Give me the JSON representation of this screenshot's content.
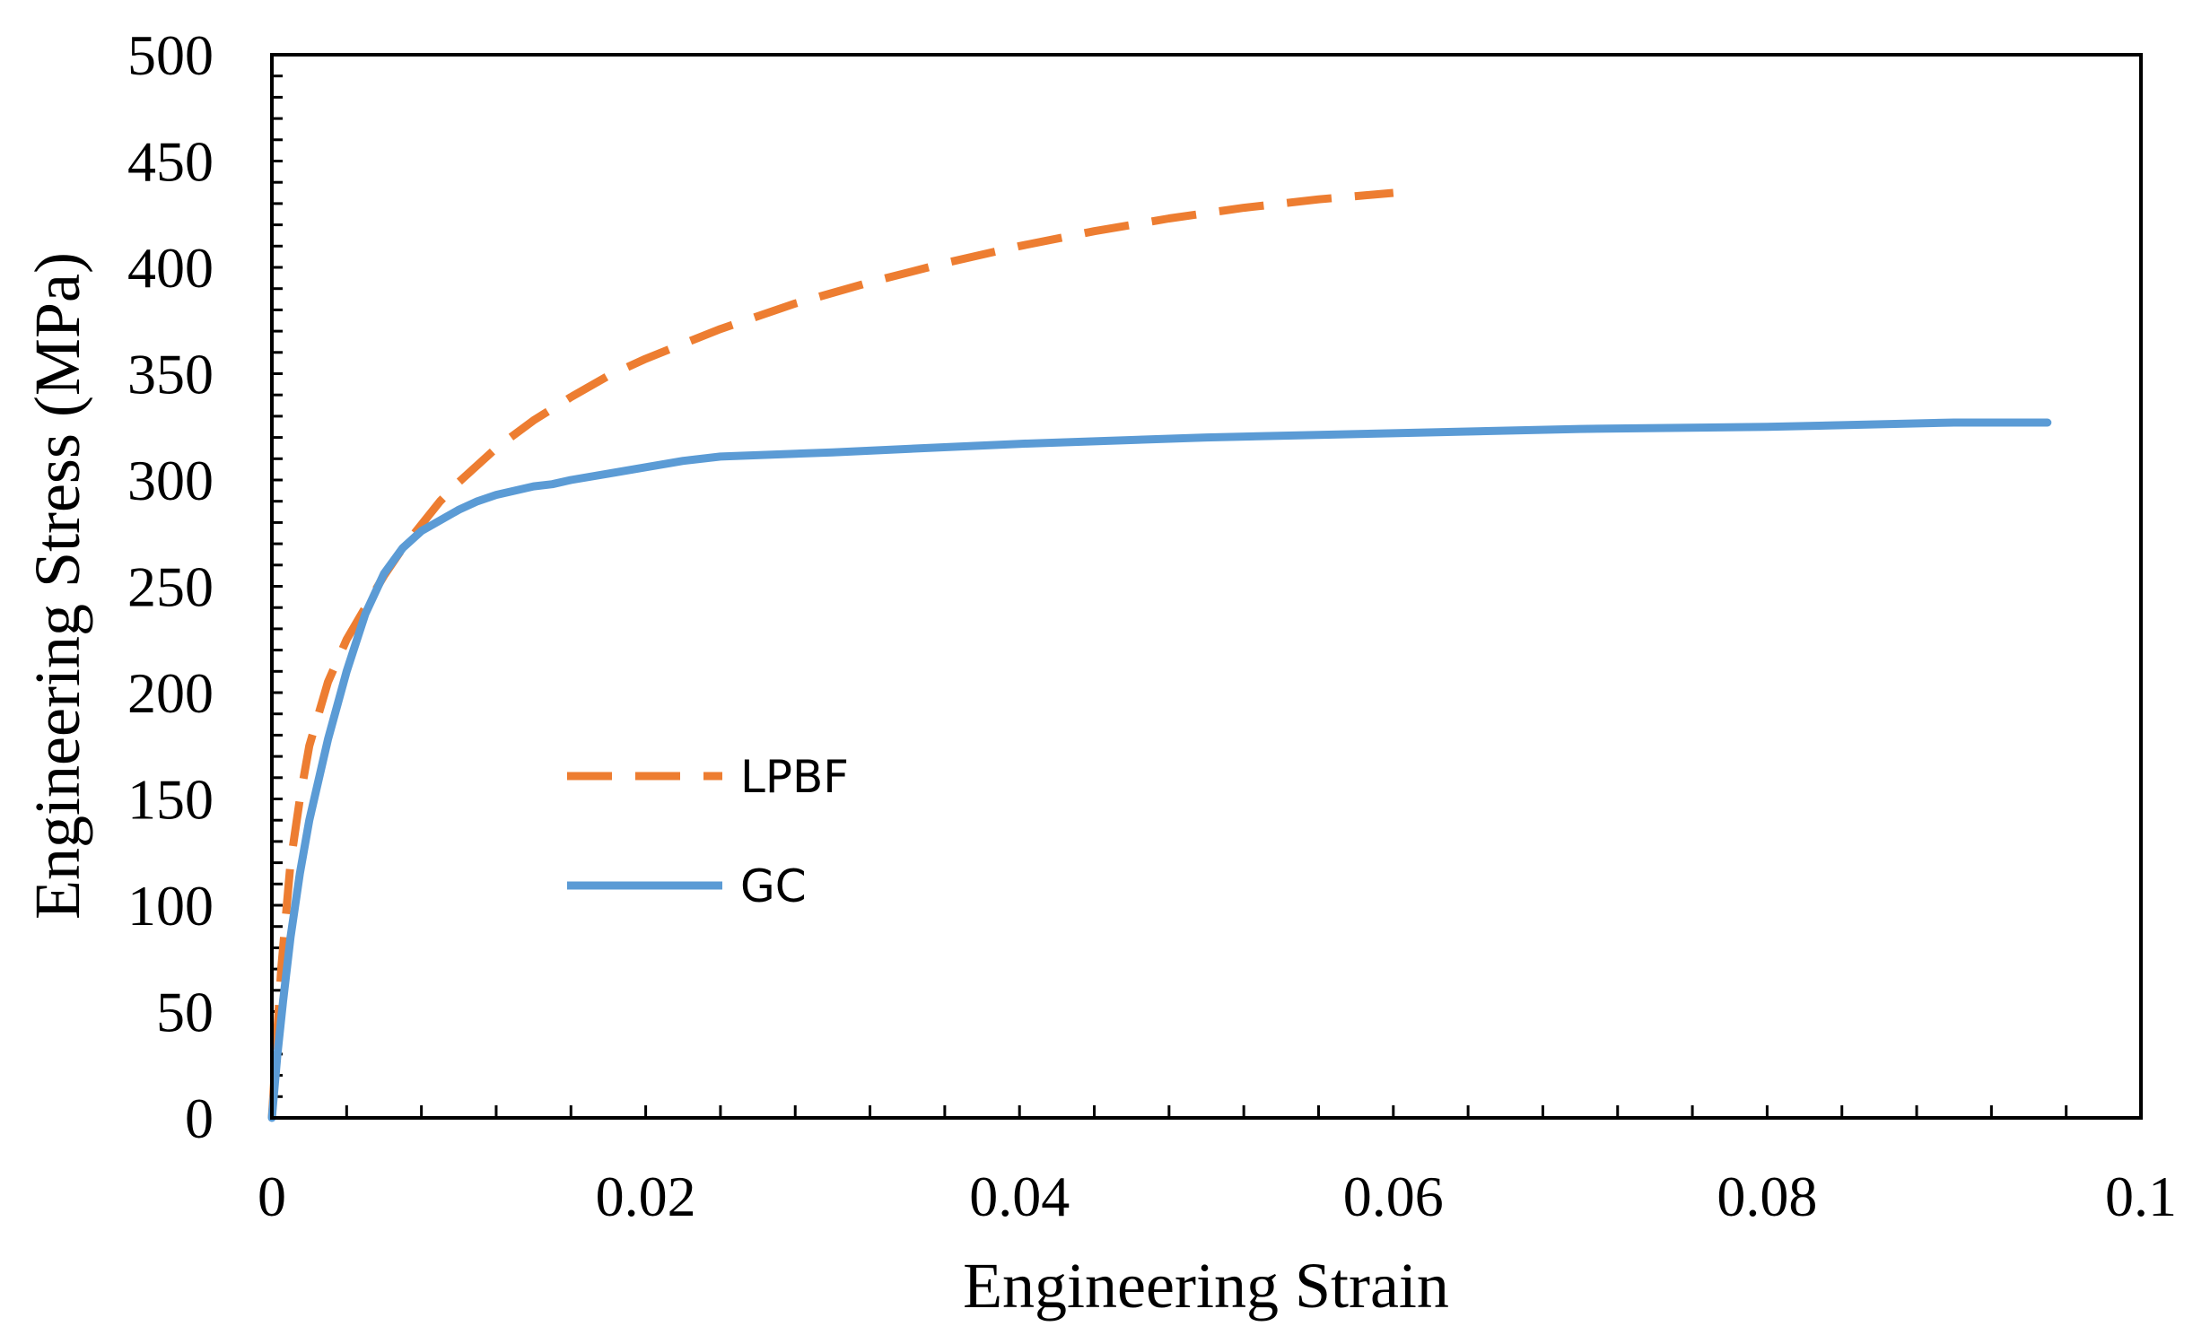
{
  "chart_data": {
    "type": "line",
    "title": "",
    "xlabel": "Engineering Strain",
    "ylabel": "Engineering Stress (MPa)",
    "xlim": [
      0,
      0.1
    ],
    "ylim": [
      0,
      500
    ],
    "x_ticks": [
      0,
      0.02,
      0.04,
      0.06,
      0.08,
      0.1
    ],
    "x_tick_labels": [
      "0",
      "0.02",
      "0.04",
      "0.06",
      "0.08",
      "0.1"
    ],
    "y_ticks": [
      0,
      50,
      100,
      150,
      200,
      250,
      300,
      350,
      400,
      450,
      500
    ],
    "y_tick_labels": [
      "0",
      "50",
      "100",
      "150",
      "200",
      "250",
      "300",
      "350",
      "400",
      "450",
      "500"
    ],
    "x_minor_step": 0.004,
    "y_minor_step": 10,
    "grid": false,
    "legend_position": "center-left",
    "series": [
      {
        "name": "LPBF",
        "color": "#ED7D31",
        "style": "dashed",
        "x": [
          0,
          0.0005,
          0.001,
          0.0015,
          0.002,
          0.003,
          0.004,
          0.005,
          0.006,
          0.007,
          0.008,
          0.009,
          0.01,
          0.012,
          0.014,
          0.016,
          0.018,
          0.02,
          0.024,
          0.028,
          0.032,
          0.036,
          0.04,
          0.044,
          0.048,
          0.052,
          0.056,
          0.06
        ],
        "values": [
          0,
          70,
          120,
          150,
          175,
          205,
          225,
          240,
          255,
          268,
          279,
          290,
          299,
          315,
          328,
          339,
          349,
          357,
          371,
          383,
          393,
          402,
          410,
          417,
          423,
          428,
          432,
          435
        ]
      },
      {
        "name": "GC",
        "color": "#5B9BD5",
        "style": "solid",
        "x": [
          0,
          0.0003,
          0.0006,
          0.001,
          0.0015,
          0.002,
          0.003,
          0.004,
          0.005,
          0.006,
          0.007,
          0.008,
          0.009,
          0.01,
          0.011,
          0.012,
          0.013,
          0.014,
          0.015,
          0.016,
          0.018,
          0.02,
          0.022,
          0.024,
          0.03,
          0.04,
          0.05,
          0.06,
          0.07,
          0.08,
          0.09,
          0.095
        ],
        "values": [
          0,
          30,
          55,
          85,
          115,
          140,
          178,
          210,
          237,
          256,
          268,
          276,
          281,
          286,
          290,
          293,
          295,
          297,
          298,
          300,
          303,
          306,
          309,
          311,
          313,
          317,
          320,
          322,
          324,
          325,
          327,
          327
        ]
      }
    ]
  }
}
